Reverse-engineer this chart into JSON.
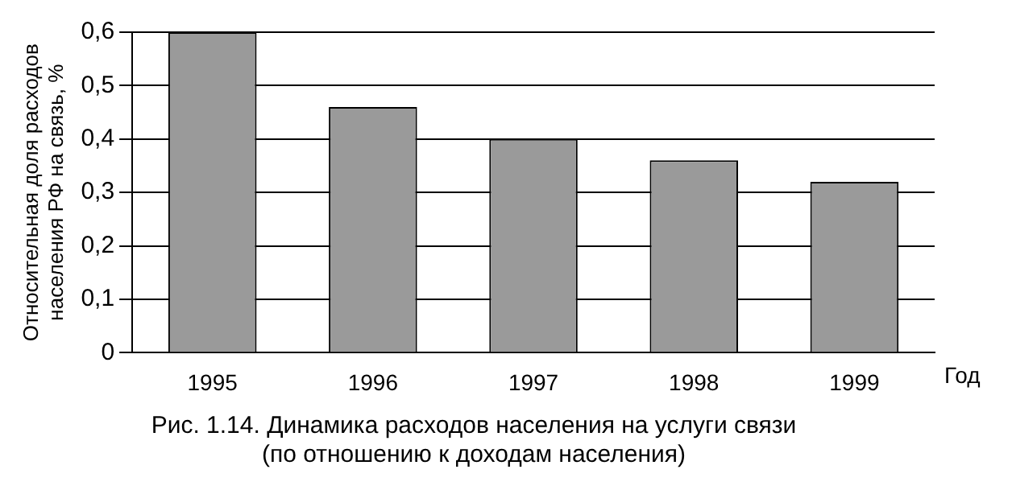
{
  "chart_data": {
    "type": "bar",
    "title": "Рис. 1.14. Динамика расходов населения на услуги связи",
    "subtitle": "(по отношению к доходам населения)",
    "xlabel": "Год",
    "ylabel": "Относительная доля расходов населения РФ на связь, %",
    "categories": [
      "1995",
      "1996",
      "1997",
      "1998",
      "1999"
    ],
    "values": [
      0.6,
      0.46,
      0.4,
      0.36,
      0.32
    ],
    "color": "#9a9a9a",
    "ylim": [
      0,
      0.6
    ],
    "yticks": [
      0,
      {
        "value": 0.1,
        "label": "0,1"
      },
      {
        "value": 0.2,
        "label": "0,2"
      },
      {
        "value": 0.3,
        "label": "0,3"
      },
      {
        "value": 0.4,
        "label": "0,4"
      },
      {
        "value": 0.5,
        "label": "0,5"
      },
      {
        "value": 0.6,
        "label": "0,6"
      }
    ],
    "grid": "y",
    "legend": false
  }
}
